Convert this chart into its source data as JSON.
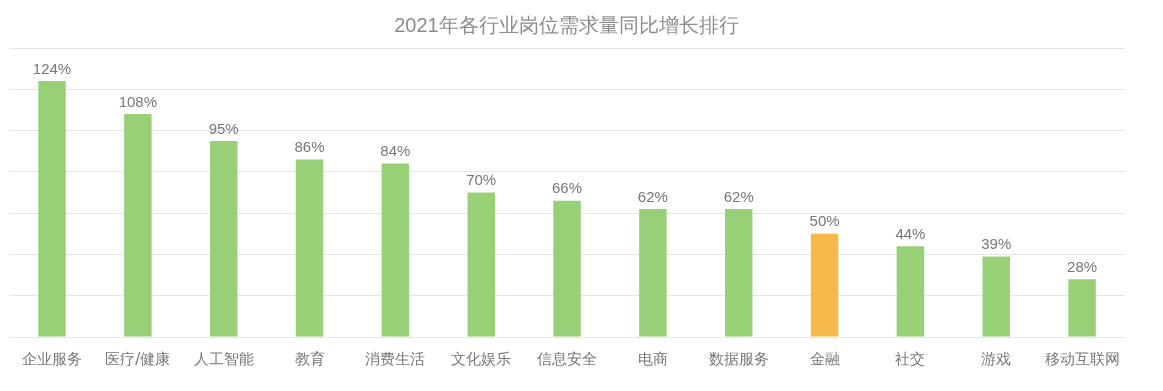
{
  "chart_data": {
    "type": "bar",
    "title": "2021年各行业岗位需求量同比增长排行",
    "categories": [
      "企业服务",
      "医疗/健康",
      "人工智能",
      "教育",
      "消费生活",
      "文化娱乐",
      "信息安全",
      "电商",
      "数据服务",
      "金融",
      "社交",
      "游戏",
      "移动互联网"
    ],
    "values": [
      124,
      108,
      95,
      86,
      84,
      70,
      66,
      62,
      62,
      50,
      44,
      39,
      28
    ],
    "colors": [
      "#97d077",
      "#97d077",
      "#97d077",
      "#97d077",
      "#97d077",
      "#97d077",
      "#97d077",
      "#97d077",
      "#97d077",
      "#f5b94a",
      "#97d077",
      "#97d077",
      "#97d077"
    ],
    "value_labels": [
      "124%",
      "108%",
      "95%",
      "86%",
      "84%",
      "70%",
      "66%",
      "62%",
      "62%",
      "50%",
      "44%",
      "39%",
      "28%"
    ],
    "ylim": [
      0,
      140
    ],
    "yticks": [
      {
        "value": 0,
        "label": null
      },
      {
        "value": 20,
        "label": null
      },
      {
        "value": 40,
        "label": null
      },
      {
        "value": 60,
        "label": null
      },
      {
        "value": 80,
        "label": null
      },
      {
        "value": 100,
        "label": null
      },
      {
        "value": 120,
        "label": null
      },
      {
        "value": 140,
        "label": null
      }
    ],
    "tick_labels": "x",
    "grid": "y",
    "legend": false
  }
}
